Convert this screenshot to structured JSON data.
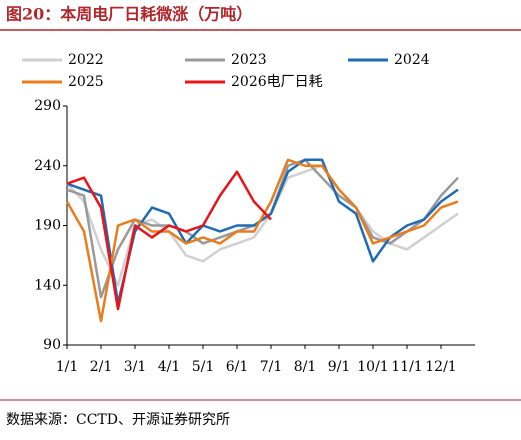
{
  "header": {
    "title": "图20：本周电厂日耗微涨（万吨）"
  },
  "chart_data": {
    "type": "line",
    "categories": [
      "1/1",
      null,
      "2/1",
      null,
      "3/1",
      null,
      "4/1",
      null,
      "5/1",
      null,
      "6/1",
      null,
      "7/1",
      null,
      "8/1",
      null,
      "9/1",
      null,
      "10/1",
      null,
      "11/1",
      null,
      "12/1",
      null
    ],
    "series": [
      {
        "name": "2022",
        "color": "#d0d0d0",
        "values": [
          225,
          210,
          170,
          140,
          190,
          195,
          185,
          165,
          160,
          170,
          175,
          180,
          200,
          230,
          235,
          240,
          220,
          205,
          185,
          175,
          170,
          180,
          190,
          200
        ]
      },
      {
        "name": "2023",
        "color": "#999999",
        "values": [
          220,
          215,
          130,
          170,
          195,
          190,
          190,
          185,
          175,
          180,
          185,
          190,
          200,
          240,
          245,
          230,
          215,
          205,
          180,
          175,
          185,
          195,
          215,
          230
        ]
      },
      {
        "name": "2024",
        "color": "#1f6cb5",
        "values": [
          225,
          220,
          215,
          125,
          185,
          205,
          200,
          175,
          190,
          185,
          190,
          190,
          200,
          235,
          245,
          245,
          210,
          200,
          160,
          180,
          190,
          195,
          210,
          220
        ]
      },
      {
        "name": "2025",
        "color": "#e87d1e",
        "values": [
          210,
          185,
          110,
          190,
          195,
          185,
          185,
          175,
          180,
          175,
          185,
          185,
          210,
          245,
          240,
          240,
          220,
          205,
          175,
          180,
          185,
          190,
          205,
          210
        ]
      },
      {
        "name": "2026电厂日耗",
        "color": "#e8141c",
        "values": [
          225,
          230,
          205,
          120,
          190,
          180,
          190,
          185,
          190,
          215,
          235,
          210,
          195,
          null,
          null,
          null,
          null,
          null,
          null,
          null,
          null,
          null,
          null,
          null
        ]
      }
    ],
    "ylim": [
      90,
      290
    ],
    "yticks": [
      90,
      140,
      190,
      240,
      290
    ]
  },
  "footer": {
    "source": "数据来源：CCTD、开源证券研究所"
  }
}
